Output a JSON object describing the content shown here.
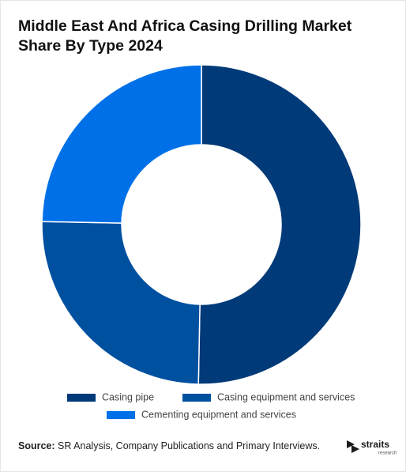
{
  "chart_data": {
    "type": "donut",
    "title": "Middle East And Africa Casing Drilling Market Share By Type 2024",
    "categories": [
      "Casing pipe",
      "Casing equipment and services",
      "Cementing equipment and services"
    ],
    "values": [
      50.3,
      25,
      24.7
    ],
    "colors": [
      "#003a78",
      "#0050a0",
      "#0070e8"
    ]
  },
  "footer": {
    "source_label": "Source:",
    "source_text": "SR Analysis, Company Publications and Primary Interviews.",
    "logo": {
      "name": "straits",
      "tagline": "research"
    }
  }
}
